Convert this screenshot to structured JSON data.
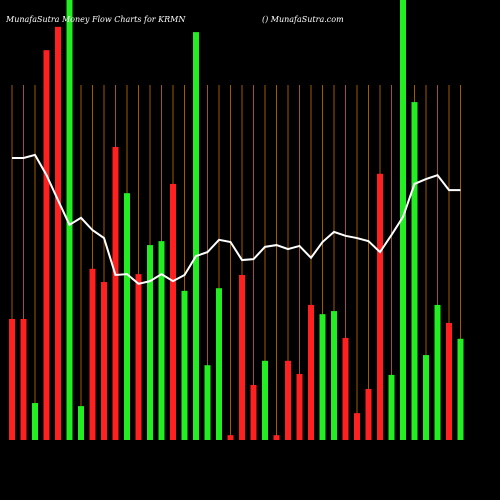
{
  "chart_data": {
    "type": "bar-line",
    "title": "MunafaSutra Money Flow Charts for KRMN",
    "credit": "() MunafaSutra.com",
    "categories": [
      null,
      null,
      null,
      null,
      null,
      null,
      null,
      null,
      null,
      null,
      null,
      null,
      null,
      null,
      null,
      null,
      null,
      null,
      null,
      null,
      null,
      null,
      null,
      null,
      null,
      null,
      null,
      null,
      null,
      null,
      null,
      null,
      null,
      null,
      null,
      null,
      null,
      null,
      null,
      null
    ],
    "ylim": [
      0,
      100
    ],
    "background": "#000000",
    "grid_color": "#a05a00",
    "series": [
      {
        "type": "bar",
        "values": [
          27.5,
          27.5,
          8.4,
          88.6,
          93.9,
          100,
          7.7,
          38.9,
          35.9,
          66.6,
          56.1,
          37.7,
          44.3,
          45.2,
          58.2,
          33.9,
          92.7,
          17.0,
          34.5,
          1.1,
          37.5,
          12.5,
          18.0,
          1.1,
          18.0,
          15.0,
          30.7,
          28.6,
          29.3,
          23.2,
          6.1,
          11.6,
          60.5,
          14.8,
          100,
          76.8,
          19.3,
          30.7,
          26.6,
          23.0
        ],
        "colors": [
          "#ff2020",
          "#ff2020",
          "#22ee22",
          "#ff2020",
          "#ff2020",
          "#22ee22",
          "#22ee22",
          "#ff2020",
          "#ff2020",
          "#ff2020",
          "#22ee22",
          "#ff2020",
          "#22ee22",
          "#22ee22",
          "#ff2020",
          "#22ee22",
          "#22ee22",
          "#22ee22",
          "#22ee22",
          "#ff2020",
          "#ff2020",
          "#ff2020",
          "#22ee22",
          "#ff2020",
          "#ff2020",
          "#ff2020",
          "#ff2020",
          "#22ee22",
          "#22ee22",
          "#ff2020",
          "#ff2020",
          "#ff2020",
          "#ff2020",
          "#22ee22",
          "#22ee22",
          "#22ee22",
          "#22ee22",
          "#22ee22",
          "#ff2020",
          "#22ee22"
        ]
      },
      {
        "type": "line",
        "color": "#ffffff",
        "values": [
          64.1,
          64.1,
          64.8,
          60.2,
          54.5,
          48.9,
          50.5,
          47.7,
          45.9,
          37.5,
          37.7,
          35.5,
          36.1,
          37.7,
          36.1,
          37.5,
          41.8,
          42.7,
          45.5,
          45.0,
          40.9,
          41.1,
          43.9,
          44.3,
          43.4,
          44.1,
          41.4,
          45.0,
          47.3,
          46.4,
          45.9,
          45.2,
          42.7,
          46.6,
          50.7,
          58.2,
          59.3,
          60.2,
          56.8,
          56.8
        ]
      }
    ]
  }
}
